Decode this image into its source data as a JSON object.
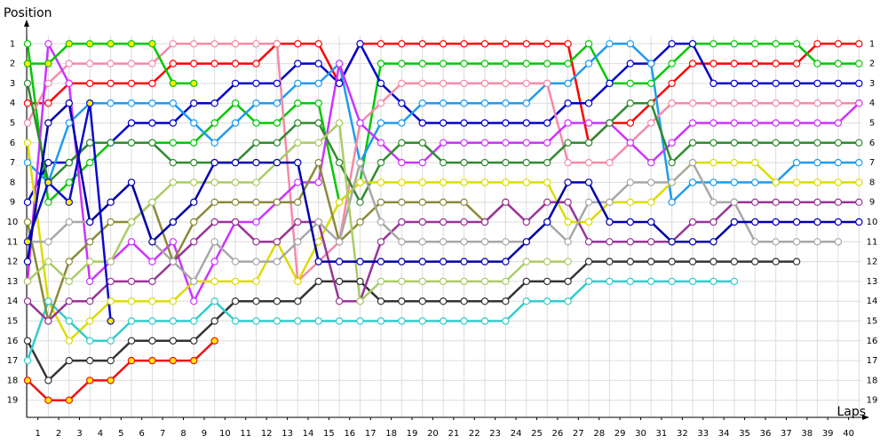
{
  "chart_data": {
    "type": "line",
    "y_label": "Position",
    "x_label": "Laps",
    "y_reversed": true,
    "grid": true,
    "ylim": [
      0,
      20
    ],
    "yticks": [
      1,
      2,
      3,
      4,
      5,
      6,
      7,
      8,
      9,
      10,
      11,
      12,
      13,
      14,
      15,
      16,
      17,
      18,
      19
    ],
    "xlim": [
      0,
      40.5
    ],
    "xticks": [
      {
        "value": 0.5,
        "label": "1"
      },
      {
        "value": 1.5,
        "label": "2"
      },
      {
        "value": 2.5,
        "label": "3"
      },
      {
        "value": 3.5,
        "label": "4"
      },
      {
        "value": 4.5,
        "label": "5"
      },
      {
        "value": 5.5,
        "label": "6"
      },
      {
        "value": 6.5,
        "label": "7"
      },
      {
        "value": 7.5,
        "label": "8"
      },
      {
        "value": 8.5,
        "label": "9"
      },
      {
        "value": 9.5,
        "label": "10"
      },
      {
        "value": 10.5,
        "label": "11"
      },
      {
        "value": 11.5,
        "label": "12"
      },
      {
        "value": 12.5,
        "label": "13"
      },
      {
        "value": 13.5,
        "label": "14"
      },
      {
        "value": 14.5,
        "label": "15"
      },
      {
        "value": 15.5,
        "label": "16"
      },
      {
        "value": 16.5,
        "label": "17"
      },
      {
        "value": 17.5,
        "label": "18"
      },
      {
        "value": 18.5,
        "label": "19"
      },
      {
        "value": 19.5,
        "label": "20"
      },
      {
        "value": 20.5,
        "label": "21"
      },
      {
        "value": 21.5,
        "label": "22"
      },
      {
        "value": 22.5,
        "label": "23"
      },
      {
        "value": 23.5,
        "label": "24"
      },
      {
        "value": 24.5,
        "label": "25"
      },
      {
        "value": 25.5,
        "label": "26"
      },
      {
        "value": 26.5,
        "label": "27"
      },
      {
        "value": 27.5,
        "label": "28"
      },
      {
        "value": 28.5,
        "label": "29"
      },
      {
        "value": 29.5,
        "label": "30"
      },
      {
        "value": 30.5,
        "label": "31"
      },
      {
        "value": 31.5,
        "label": "32"
      },
      {
        "value": 32.5,
        "label": "33"
      },
      {
        "value": 33.5,
        "label": "34"
      },
      {
        "value": 34.5,
        "label": "35"
      },
      {
        "value": 35.5,
        "label": "36"
      },
      {
        "value": 36.5,
        "label": "37"
      },
      {
        "value": 37.5,
        "label": "38"
      },
      {
        "value": 38.5,
        "label": "39"
      },
      {
        "value": 39.5,
        "label": "40"
      }
    ],
    "x": [
      0,
      1,
      2,
      3,
      4,
      5,
      6,
      7,
      8,
      9,
      10,
      11,
      12,
      13,
      14,
      15,
      16,
      17,
      18,
      19,
      20,
      21,
      22,
      23,
      24,
      25,
      26,
      27,
      28,
      29,
      30,
      31,
      32,
      33,
      34,
      35,
      36,
      37,
      38,
      39,
      40
    ],
    "series": [
      {
        "color": "#ff0000",
        "marker_fill": "#ffffff",
        "values": [
          4,
          4,
          3,
          3,
          3,
          3,
          3,
          2,
          2,
          2,
          2,
          2,
          1,
          1,
          1,
          3,
          1,
          1,
          1,
          1,
          1,
          1,
          1,
          1,
          1,
          1,
          1,
          6,
          5,
          5,
          4,
          3,
          2,
          2,
          2,
          2,
          2,
          2,
          1,
          1,
          1
        ]
      },
      {
        "color": "#00c800",
        "marker_fill": "#ffffff",
        "values": [
          1,
          9,
          8,
          7,
          6,
          6,
          6,
          6,
          6,
          5,
          4,
          5,
          5,
          4,
          4,
          9,
          8,
          2,
          2,
          2,
          2,
          2,
          2,
          2,
          2,
          2,
          2,
          1,
          3,
          3,
          3,
          2,
          1,
          1,
          1,
          1,
          1,
          1,
          2,
          2,
          2
        ]
      },
      {
        "color": "#0000cc",
        "marker_fill": "#ffffff",
        "values": [
          9,
          7,
          7,
          6,
          6,
          5,
          5,
          5,
          4,
          4,
          3,
          3,
          3,
          2,
          2,
          3,
          1,
          3,
          4,
          5,
          5,
          5,
          5,
          5,
          5,
          5,
          4,
          4,
          3,
          2,
          2,
          1,
          1,
          3,
          3,
          3,
          3,
          3,
          3,
          3,
          3
        ]
      },
      {
        "color": "#1e9bf0",
        "marker_fill": "#ffffff",
        "values": [
          7,
          8,
          5,
          4,
          4,
          4,
          4,
          4,
          5,
          6,
          5,
          4,
          4,
          3,
          3,
          2,
          7,
          5,
          5,
          4,
          4,
          4,
          4,
          4,
          4,
          3,
          3,
          2,
          1,
          1,
          2,
          9,
          8,
          8,
          8,
          8,
          8,
          7,
          7,
          7,
          7
        ]
      },
      {
        "color": "#f58aa8",
        "marker_fill": "#ffffff",
        "values": [
          5,
          3,
          2,
          2,
          2,
          2,
          2,
          1,
          1,
          1,
          1,
          1,
          1,
          13,
          12,
          11,
          5,
          4,
          3,
          3,
          3,
          3,
          3,
          3,
          3,
          3,
          7,
          7,
          7,
          6,
          5,
          4,
          4,
          4,
          4,
          4,
          4,
          4,
          4,
          4,
          4
        ]
      },
      {
        "color": "#cc33ff",
        "marker_fill": "#ffffff",
        "values": [
          13,
          1,
          3,
          13,
          12,
          11,
          12,
          11,
          14,
          12,
          10,
          10,
          9,
          8,
          8,
          2,
          5,
          6,
          7,
          7,
          6,
          6,
          6,
          6,
          6,
          6,
          5,
          5,
          5,
          6,
          7,
          6,
          5,
          5,
          5,
          5,
          5,
          5,
          5,
          5,
          4
        ]
      },
      {
        "color": "#2e8b2e",
        "marker_fill": "#ffffff",
        "values": [
          3,
          8,
          7,
          6,
          6,
          6,
          6,
          7,
          7,
          7,
          7,
          6,
          6,
          5,
          5,
          7,
          9,
          7,
          6,
          6,
          7,
          7,
          7,
          7,
          7,
          7,
          6,
          6,
          5,
          4,
          4,
          7,
          6,
          6,
          6,
          6,
          6,
          6,
          6,
          6,
          6
        ]
      },
      {
        "color": "#dcdc00",
        "marker_fill": "#ffffff",
        "values": [
          6,
          14,
          16,
          15,
          14,
          14,
          14,
          14,
          13,
          13,
          13,
          13,
          11,
          13,
          11,
          9,
          8,
          8,
          8,
          8,
          8,
          8,
          8,
          8,
          8,
          8,
          10,
          10,
          9,
          9,
          9,
          8,
          7,
          7,
          7,
          7,
          8,
          8,
          8,
          8,
          8
        ]
      },
      {
        "color": "#333333",
        "marker_fill": "#ffffff",
        "values": [
          16,
          18,
          17,
          17,
          17,
          16,
          16,
          16,
          16,
          15,
          14,
          14,
          14,
          14,
          13,
          13,
          13,
          14,
          14,
          14,
          14,
          14,
          14,
          14,
          13,
          13,
          13,
          12,
          12,
          12,
          12,
          12,
          12,
          12,
          12,
          12,
          12,
          12,
          null,
          null,
          null
        ]
      },
      {
        "color": "#33cccc",
        "marker_fill": "#ffffff",
        "values": [
          17,
          14,
          15,
          16,
          16,
          15,
          15,
          15,
          15,
          14,
          15,
          15,
          15,
          15,
          15,
          15,
          15,
          15,
          15,
          15,
          15,
          15,
          15,
          15,
          14,
          14,
          14,
          13,
          13,
          13,
          13,
          13,
          13,
          13,
          13,
          null,
          null,
          null,
          null,
          null,
          null
        ]
      },
      {
        "color": "#ee1111",
        "marker_fill": "#ffee00",
        "values": [
          18,
          19,
          19,
          18,
          18,
          17,
          17,
          17,
          17,
          16,
          null,
          null,
          null,
          null,
          null,
          null,
          null,
          null,
          null,
          null,
          null,
          null,
          null,
          null,
          null,
          null,
          null,
          null,
          null,
          null,
          null,
          null,
          null,
          null,
          null,
          null,
          null,
          null,
          null,
          null,
          null
        ]
      },
      {
        "color": "#00c800",
        "marker_fill": "#ffee00",
        "values": [
          2,
          2,
          1,
          1,
          1,
          1,
          1,
          3,
          3,
          null,
          null,
          null,
          null,
          null,
          null,
          null,
          null,
          null,
          null,
          null,
          null,
          null,
          null,
          null,
          null,
          null,
          null,
          null,
          null,
          null,
          null,
          null,
          null,
          null,
          null,
          null,
          null,
          null,
          null,
          null,
          null
        ]
      },
      {
        "color": "#8a8a3a",
        "marker_fill": "#ffffff",
        "values": [
          10,
          15,
          12,
          11,
          10,
          10,
          9,
          12,
          10,
          9,
          9,
          9,
          9,
          9,
          7,
          11,
          10,
          9,
          9,
          9,
          9,
          9,
          10,
          9,
          null,
          null,
          null,
          null,
          null,
          null,
          null,
          null,
          null,
          null,
          null,
          null,
          null,
          null,
          null,
          null,
          null
        ]
      },
      {
        "color": "#993399",
        "marker_fill": "#ffffff",
        "values": [
          14,
          15,
          14,
          14,
          13,
          13,
          13,
          12,
          11,
          10,
          10,
          11,
          11,
          10,
          10,
          14,
          14,
          11,
          10,
          10,
          10,
          10,
          10,
          9,
          10,
          9,
          9,
          11,
          11,
          11,
          11,
          11,
          10,
          10,
          9,
          9,
          9,
          9,
          9,
          9,
          9
        ]
      },
      {
        "color": "#a8a8a8",
        "marker_fill": "#ffffff",
        "values": [
          11,
          11,
          10,
          10,
          9,
          8,
          11,
          12,
          13,
          11,
          12,
          12,
          12,
          11,
          10,
          11,
          7,
          10,
          11,
          11,
          11,
          11,
          11,
          11,
          11,
          10,
          11,
          9,
          9,
          8,
          8,
          8,
          7,
          9,
          9,
          11,
          11,
          11,
          11,
          11,
          null
        ]
      },
      {
        "color": "#aacc66",
        "marker_fill": "#ffffff",
        "values": [
          13,
          12,
          13,
          12,
          12,
          10,
          9,
          8,
          8,
          8,
          8,
          8,
          7,
          6,
          6,
          5,
          14,
          13,
          13,
          13,
          13,
          13,
          13,
          13,
          12,
          12,
          12,
          null,
          null,
          null,
          null,
          null,
          null,
          null,
          null,
          null,
          null,
          null,
          null,
          null,
          null
        ]
      },
      {
        "color": "#0a0ad0",
        "marker_fill": "#ffee00",
        "values": [
          11,
          8,
          9,
          4,
          15,
          null,
          null,
          null,
          null,
          null,
          null,
          null,
          null,
          null,
          null,
          null,
          null,
          null,
          null,
          null,
          null,
          null,
          null,
          null,
          null,
          null,
          null,
          null,
          null,
          null,
          null,
          null,
          null,
          null,
          null,
          null,
          null,
          null,
          null,
          null,
          null
        ]
      },
      {
        "color": "#0000aa",
        "marker_fill": "#ffffff",
        "values": [
          12,
          5,
          4,
          10,
          9,
          8,
          11,
          10,
          9,
          7,
          7,
          7,
          7,
          7,
          12,
          12,
          12,
          12,
          12,
          12,
          12,
          12,
          12,
          12,
          11,
          10,
          8,
          8,
          10,
          10,
          10,
          11,
          11,
          11,
          10,
          10,
          10,
          10,
          10,
          10,
          10
        ]
      }
    ]
  }
}
